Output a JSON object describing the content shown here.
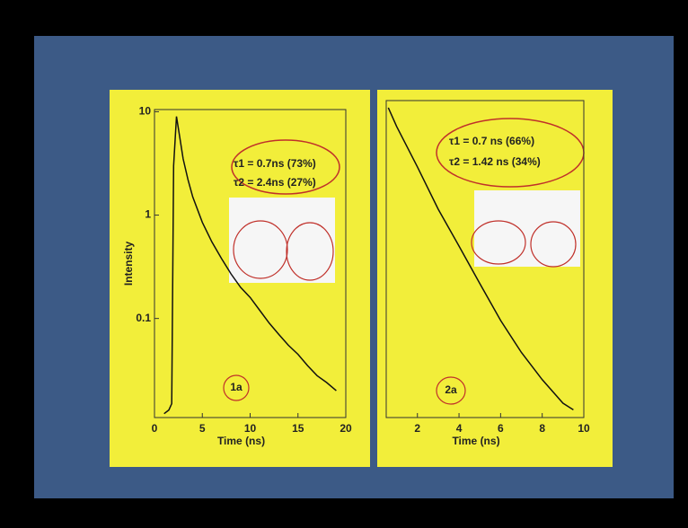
{
  "chart_data": [
    {
      "type": "line",
      "xlabel": "Time (ns)",
      "ylabel": "Intensity",
      "x": [
        1,
        1.5,
        1.8,
        2.0,
        2.3,
        2.6,
        3,
        3.5,
        4,
        5,
        6,
        7,
        8,
        9,
        10,
        11,
        12,
        13,
        14,
        15,
        16,
        17,
        18,
        19
      ],
      "series": [
        {
          "color": "#111111",
          "values": [
            0.012,
            0.013,
            0.015,
            3,
            9,
            6,
            3.5,
            2.2,
            1.5,
            0.85,
            0.55,
            0.38,
            0.27,
            0.2,
            0.16,
            0.12,
            0.09,
            0.07,
            0.055,
            0.045,
            0.035,
            0.028,
            0.024,
            0.02
          ]
        }
      ],
      "xlim": [
        0,
        20
      ],
      "ylim": [
        0.011,
        10.5
      ],
      "log_y": true,
      "xticks": [
        0,
        5,
        10,
        15,
        20
      ],
      "yticks": [
        10,
        1,
        0.1
      ],
      "annotations": [
        "τ1 = 0.7ns (73%)",
        "τ2 = 2.4ns (27%)",
        "1a"
      ]
    },
    {
      "type": "line",
      "xlabel": "Time (ns)",
      "x": [
        0.6,
        1,
        2,
        3,
        4,
        5,
        6,
        7,
        8,
        9,
        9.5
      ],
      "series": [
        {
          "color": "#111111",
          "values": [
            9,
            6,
            2.5,
            1,
            0.45,
            0.2,
            0.09,
            0.045,
            0.025,
            0.015,
            0.013
          ]
        }
      ],
      "xlim": [
        0.5,
        10
      ],
      "ylim": [
        0.011,
        10.5
      ],
      "log_y": true,
      "xticks": [
        2,
        4,
        6,
        8,
        10
      ],
      "annotations": [
        "τ1 = 0.7 ns (66%)",
        "τ2 = 1.42 ns (34%)",
        "2a"
      ]
    }
  ]
}
